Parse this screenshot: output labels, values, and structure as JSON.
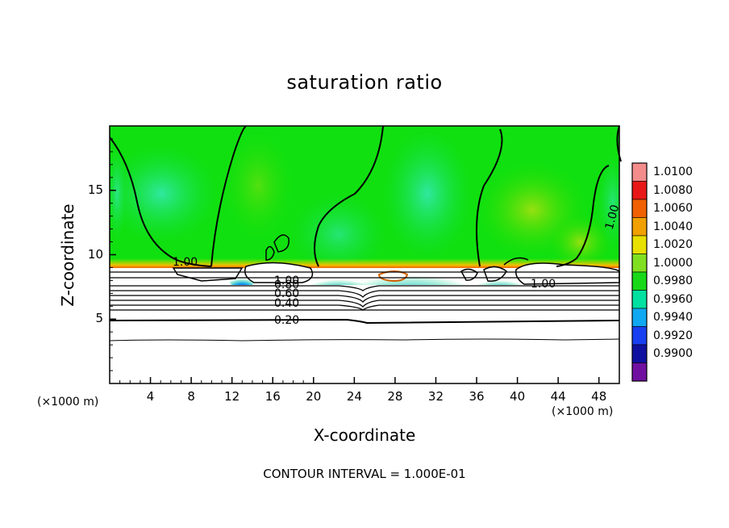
{
  "chart_data": {
    "type": "heatmap",
    "title": "saturation ratio",
    "xlabel": "X-coordinate",
    "ylabel": "Z-coordinate",
    "x_unit_left": "(×1000 m)",
    "x_unit_right": "(×1000 m)",
    "xlim": [
      0,
      50
    ],
    "ylim": [
      0,
      20
    ],
    "x_ticks": [
      "4",
      "8",
      "12",
      "16",
      "20",
      "24",
      "28",
      "32",
      "36",
      "40",
      "44",
      "48"
    ],
    "y_ticks": [
      "5",
      "10",
      "15"
    ],
    "colorbar": {
      "labels": [
        "1.0100",
        "1.0080",
        "1.0060",
        "1.0040",
        "1.0020",
        "1.0000",
        "0.9980",
        "0.9960",
        "0.9940",
        "0.9920",
        "0.9900"
      ],
      "colors": [
        "#f48c8c",
        "#e81818",
        "#f06000",
        "#f0a000",
        "#e8e000",
        "#80e020",
        "#18d818",
        "#00e0a0",
        "#10a8f0",
        "#1840f0",
        "#1010a0",
        "#7010a0"
      ]
    },
    "contour_labels": [
      "1.00",
      "1.00",
      "1.00",
      "0.80",
      "0.60",
      "0.40",
      "0.20",
      "1.00"
    ],
    "footer": "CONTOUR INTERVAL = 1.000E-01"
  }
}
